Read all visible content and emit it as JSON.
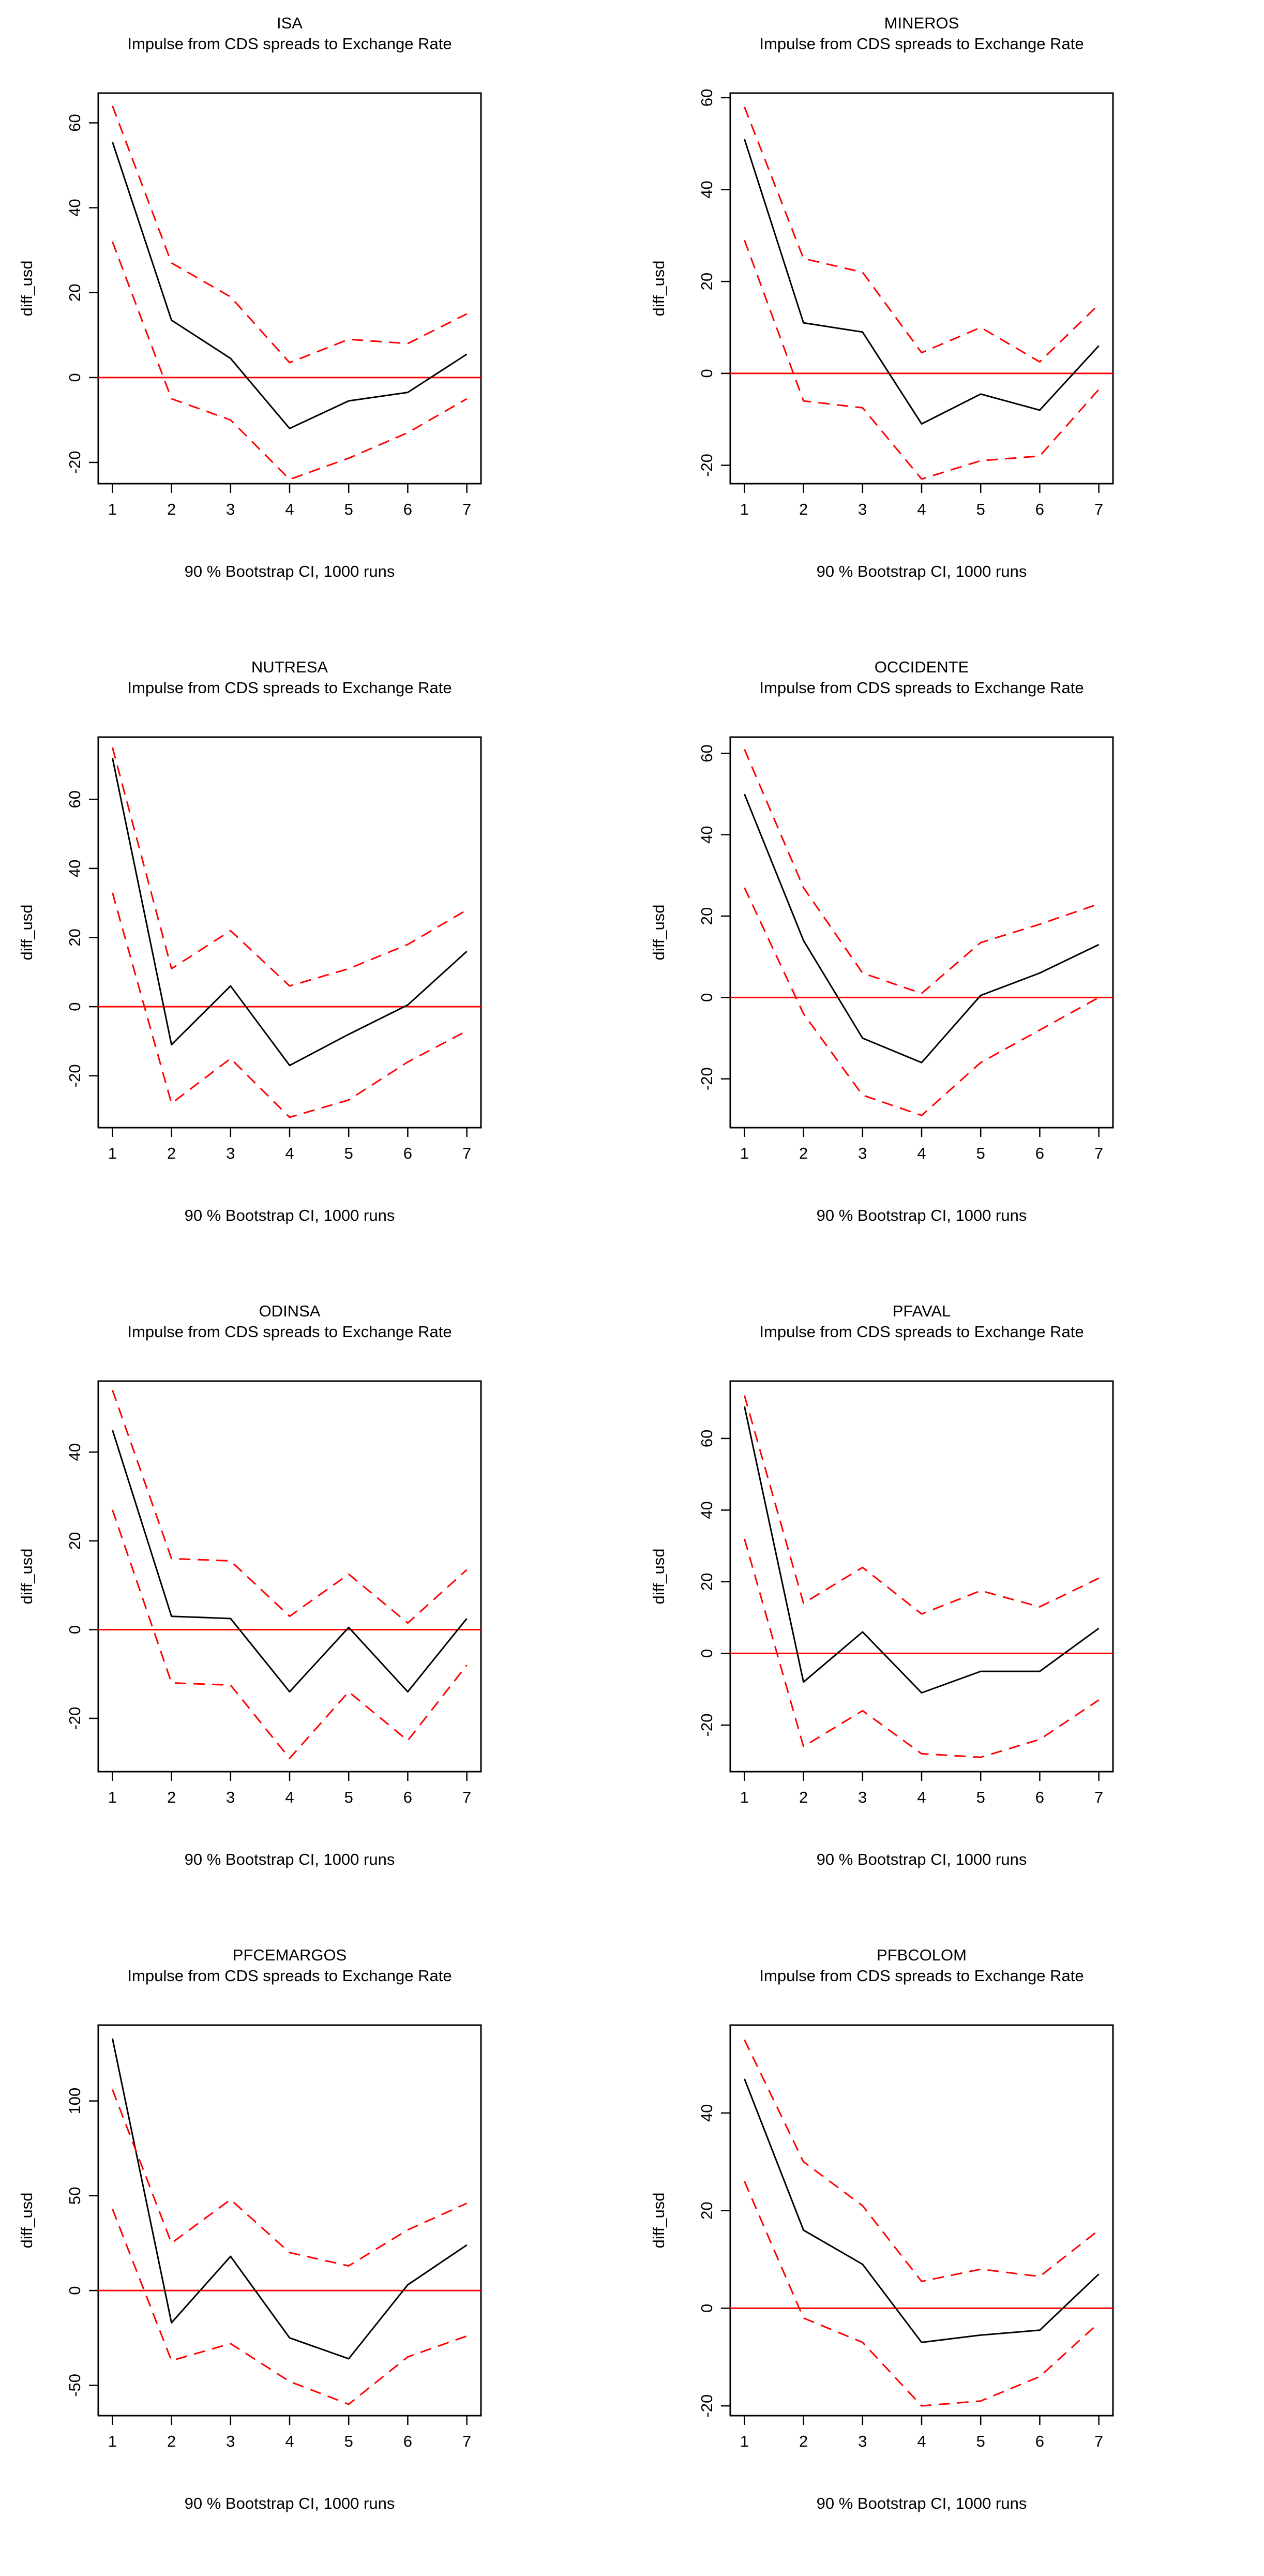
{
  "chart_data": [
    {
      "type": "line",
      "title": "ISA",
      "subtitle": "Impulse from CDS spreads to Exchange Rate",
      "ylabel": "diff_usd",
      "xlabel": "90 % Bootstrap CI,  1000 runs",
      "x": [
        1,
        2,
        3,
        4,
        5,
        6,
        7
      ],
      "xticks": [
        "1",
        "2",
        "3",
        "4",
        "5",
        "6",
        "7"
      ],
      "ylim": [
        -25,
        67
      ],
      "yticks": [
        -20,
        0,
        20,
        40,
        60
      ],
      "ytick_labels": [
        "-20",
        "0",
        "20",
        "40",
        "60"
      ],
      "series": [
        {
          "name": "response",
          "color": "#000000",
          "style": "solid",
          "values": [
            55.5,
            13.5,
            4.5,
            -12,
            -5.5,
            -3.5,
            5.5
          ]
        },
        {
          "name": "upper",
          "color": "#ff0000",
          "style": "dashed",
          "values": [
            64,
            27,
            19,
            3.5,
            9,
            8,
            15
          ]
        },
        {
          "name": "lower",
          "color": "#ff0000",
          "style": "dashed",
          "values": [
            32,
            -5,
            -10,
            -24,
            -19,
            -13,
            -5
          ]
        }
      ],
      "hline": 0
    },
    {
      "type": "line",
      "title": "MINEROS",
      "subtitle": "Impulse from CDS spreads to Exchange Rate",
      "ylabel": "diff_usd",
      "xlabel": "90 % Bootstrap CI,  1000 runs",
      "x": [
        1,
        2,
        3,
        4,
        5,
        6,
        7
      ],
      "xticks": [
        "1",
        "2",
        "3",
        "4",
        "5",
        "6",
        "7"
      ],
      "ylim": [
        -24,
        61
      ],
      "yticks": [
        -20,
        0,
        20,
        40,
        60
      ],
      "ytick_labels": [
        "-20",
        "0",
        "20",
        "40",
        "60"
      ],
      "series": [
        {
          "name": "response",
          "color": "#000000",
          "style": "solid",
          "values": [
            51,
            11,
            9,
            -11,
            -4.5,
            -8,
            6
          ]
        },
        {
          "name": "upper",
          "color": "#ff0000",
          "style": "dashed",
          "values": [
            58,
            25,
            22,
            4.5,
            10,
            2.5,
            15
          ]
        },
        {
          "name": "lower",
          "color": "#ff0000",
          "style": "dashed",
          "values": [
            29,
            -6,
            -7.5,
            -23,
            -19,
            -18,
            -3.5
          ]
        }
      ],
      "hline": 0
    },
    {
      "type": "line",
      "title": "NUTRESA",
      "subtitle": "Impulse from CDS spreads to Exchange Rate",
      "ylabel": "diff_usd",
      "xlabel": "90 % Bootstrap CI,  1000 runs",
      "x": [
        1,
        2,
        3,
        4,
        5,
        6,
        7
      ],
      "xticks": [
        "1",
        "2",
        "3",
        "4",
        "5",
        "6",
        "7"
      ],
      "ylim": [
        -35,
        78
      ],
      "yticks": [
        -20,
        0,
        20,
        40,
        60
      ],
      "ytick_labels": [
        "-20",
        "0",
        "20",
        "40",
        "60"
      ],
      "series": [
        {
          "name": "response",
          "color": "#000000",
          "style": "solid",
          "values": [
            72,
            -11,
            6,
            -17,
            -8,
            0.5,
            16
          ]
        },
        {
          "name": "upper",
          "color": "#ff0000",
          "style": "dashed",
          "values": [
            75,
            11,
            22,
            6,
            11,
            18,
            28
          ]
        },
        {
          "name": "lower",
          "color": "#ff0000",
          "style": "dashed",
          "values": [
            33,
            -28,
            -15,
            -32,
            -27,
            -16,
            -7
          ]
        }
      ],
      "hline": 0
    },
    {
      "type": "line",
      "title": "OCCIDENTE",
      "subtitle": "Impulse from CDS spreads to Exchange Rate",
      "ylabel": "diff_usd",
      "xlabel": "90 % Bootstrap CI,  1000 runs",
      "x": [
        1,
        2,
        3,
        4,
        5,
        6,
        7
      ],
      "xticks": [
        "1",
        "2",
        "3",
        "4",
        "5",
        "6",
        "7"
      ],
      "ylim": [
        -32,
        64
      ],
      "yticks": [
        -20,
        0,
        20,
        40,
        60
      ],
      "ytick_labels": [
        "-20",
        "0",
        "20",
        "40",
        "60"
      ],
      "series": [
        {
          "name": "response",
          "color": "#000000",
          "style": "solid",
          "values": [
            50,
            14,
            -10,
            -16,
            0.5,
            6,
            13
          ]
        },
        {
          "name": "upper",
          "color": "#ff0000",
          "style": "dashed",
          "values": [
            61,
            27,
            6,
            1,
            13.5,
            18,
            23
          ]
        },
        {
          "name": "lower",
          "color": "#ff0000",
          "style": "dashed",
          "values": [
            27,
            -4,
            -24,
            -29,
            -16,
            -8,
            0
          ]
        }
      ],
      "hline": 0
    },
    {
      "type": "line",
      "title": "ODINSA",
      "subtitle": "Impulse from CDS spreads to Exchange Rate",
      "ylabel": "diff_usd",
      "xlabel": "90 % Bootstrap CI,  1000 runs",
      "x": [
        1,
        2,
        3,
        4,
        5,
        6,
        7
      ],
      "xticks": [
        "1",
        "2",
        "3",
        "4",
        "5",
        "6",
        "7"
      ],
      "ylim": [
        -32,
        56
      ],
      "yticks": [
        -20,
        0,
        20,
        40
      ],
      "ytick_labels": [
        "-20",
        "0",
        "20",
        "40"
      ],
      "series": [
        {
          "name": "response",
          "color": "#000000",
          "style": "solid",
          "values": [
            45,
            3,
            2.5,
            -14,
            0.5,
            -14,
            2.5
          ]
        },
        {
          "name": "upper",
          "color": "#ff0000",
          "style": "dashed",
          "values": [
            54,
            16,
            15.5,
            3,
            12.5,
            1.5,
            13.5
          ]
        },
        {
          "name": "lower",
          "color": "#ff0000",
          "style": "dashed",
          "values": [
            27,
            -12,
            -12.5,
            -29,
            -14,
            -25,
            -8
          ]
        }
      ],
      "hline": 0
    },
    {
      "type": "line",
      "title": "PFAVAL",
      "subtitle": "Impulse from CDS spreads to Exchange Rate",
      "ylabel": "diff_usd",
      "xlabel": "90 % Bootstrap CI,  1000 runs",
      "x": [
        1,
        2,
        3,
        4,
        5,
        6,
        7
      ],
      "xticks": [
        "1",
        "2",
        "3",
        "4",
        "5",
        "6",
        "7"
      ],
      "ylim": [
        -33,
        76
      ],
      "yticks": [
        -20,
        0,
        20,
        40,
        60
      ],
      "ytick_labels": [
        "-20",
        "0",
        "20",
        "40",
        "60"
      ],
      "series": [
        {
          "name": "response",
          "color": "#000000",
          "style": "solid",
          "values": [
            69,
            -8,
            6,
            -11,
            -5,
            -5,
            7
          ]
        },
        {
          "name": "upper",
          "color": "#ff0000",
          "style": "dashed",
          "values": [
            72,
            14,
            24,
            11,
            17.5,
            13,
            21
          ]
        },
        {
          "name": "lower",
          "color": "#ff0000",
          "style": "dashed",
          "values": [
            32,
            -26,
            -16,
            -28,
            -29,
            -24,
            -13
          ]
        }
      ],
      "hline": 0
    },
    {
      "type": "line",
      "title": "PFCEMARGOS",
      "subtitle": "Impulse from CDS spreads to Exchange Rate",
      "ylabel": "diff_usd",
      "xlabel": "90 % Bootstrap CI,  1000 runs",
      "x": [
        1,
        2,
        3,
        4,
        5,
        6,
        7
      ],
      "xticks": [
        "1",
        "2",
        "3",
        "4",
        "5",
        "6",
        "7"
      ],
      "ylim": [
        -66,
        140
      ],
      "yticks": [
        -50,
        0,
        50,
        100
      ],
      "ytick_labels": [
        "-50",
        "0",
        "50",
        "100"
      ],
      "series": [
        {
          "name": "response",
          "color": "#000000",
          "style": "solid",
          "values": [
            133,
            -17,
            18,
            -25,
            -36,
            3,
            24
          ]
        },
        {
          "name": "upper",
          "color": "#ff0000",
          "style": "dashed",
          "values": [
            106,
            25,
            48,
            20,
            13,
            32,
            46
          ]
        },
        {
          "name": "lower",
          "color": "#ff0000",
          "style": "dashed",
          "values": [
            43,
            -37,
            -28,
            -48,
            -60,
            -35,
            -24
          ]
        }
      ],
      "hline": 0
    },
    {
      "type": "line",
      "title": "PFBCOLOM",
      "subtitle": "Impulse from CDS spreads to Exchange Rate",
      "ylabel": "diff_usd",
      "xlabel": "90 % Bootstrap CI,  1000 runs",
      "x": [
        1,
        2,
        3,
        4,
        5,
        6,
        7
      ],
      "xticks": [
        "1",
        "2",
        "3",
        "4",
        "5",
        "6",
        "7"
      ],
      "ylim": [
        -22,
        58
      ],
      "yticks": [
        -20,
        0,
        20,
        40
      ],
      "ytick_labels": [
        "-20",
        "0",
        "20",
        "40"
      ],
      "series": [
        {
          "name": "response",
          "color": "#000000",
          "style": "solid",
          "values": [
            47,
            16,
            9,
            -7,
            -5.5,
            -4.5,
            7
          ]
        },
        {
          "name": "upper",
          "color": "#ff0000",
          "style": "dashed",
          "values": [
            55,
            30,
            21,
            5.5,
            8,
            6.5,
            16
          ]
        },
        {
          "name": "lower",
          "color": "#ff0000",
          "style": "dashed",
          "values": [
            26,
            -2,
            -7,
            -20,
            -19,
            -14,
            -3
          ]
        }
      ],
      "hline": 0
    }
  ]
}
